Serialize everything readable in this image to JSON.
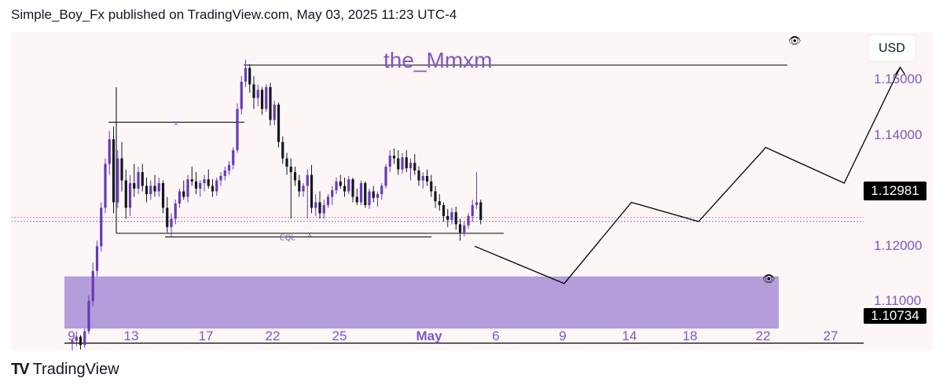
{
  "header": {
    "text": "Simple_Boy_Fx published on TradingView.com, May 03, 2025 11:23 UTC-4"
  },
  "footer": {
    "brand": "TradingView",
    "logo_icon": "tradingview-logo-icon"
  },
  "annotation": {
    "text": "the_Mmxm"
  },
  "currency": "USD",
  "price_axis": {
    "labels": [
      "1.15000",
      "1.14000",
      "1.12000",
      "1.11000"
    ],
    "current_price": "1.12981",
    "level_price": "1.10734"
  },
  "date_axis": {
    "labels": [
      "9",
      "13",
      "17",
      "22",
      "25",
      "May",
      "6",
      "9",
      "14",
      "18",
      "22",
      "27"
    ]
  },
  "drawings": {
    "eql_label": "EQL",
    "x_label_top": "x",
    "x_label_bottom": "x",
    "demand_zone_color": "#b39ddb",
    "projection_color": "#000000"
  },
  "colors": {
    "bull": "#673ab7",
    "bear": "#131722",
    "accent": "#7e57c2"
  },
  "chart_data": {
    "type": "candlestick",
    "symbol": "",
    "ylim": [
      1.106,
      1.164
    ],
    "y_ticks": [
      1.15,
      1.14,
      1.12,
      1.11
    ],
    "current_price": 1.12981,
    "horizontal_level": 1.10734,
    "top_level": 1.158,
    "eql_level": 1.1267,
    "sweep_level": 1.1252,
    "upper_x_level": 1.1476,
    "demand_zone": [
      1.11,
      1.1195
    ],
    "projection_path": [
      {
        "day": 64.0,
        "price": 1.125
      },
      {
        "day": 68.0,
        "price": 1.1182
      },
      {
        "day": 71.0,
        "price": 1.133
      },
      {
        "day": 74.0,
        "price": 1.1295
      },
      {
        "day": 77.0,
        "price": 1.143
      },
      {
        "day": 80.5,
        "price": 1.1365
      },
      {
        "day": 83.0,
        "price": 1.1576
      }
    ],
    "ohlc": [
      [
        1.1075,
        1.1082,
        1.1058,
        1.1078
      ],
      [
        1.1078,
        1.1095,
        1.1068,
        1.1085
      ],
      [
        1.1085,
        1.1088,
        1.1062,
        1.107
      ],
      [
        1.107,
        1.11,
        1.1065,
        1.1095
      ],
      [
        1.1095,
        1.116,
        1.109,
        1.115
      ],
      [
        1.115,
        1.122,
        1.114,
        1.1205
      ],
      [
        1.1205,
        1.126,
        1.1195,
        1.125
      ],
      [
        1.125,
        1.133,
        1.124,
        1.132
      ],
      [
        1.132,
        1.141,
        1.131,
        1.14
      ],
      [
        1.14,
        1.146,
        1.138,
        1.1445
      ],
      [
        1.1445,
        1.1468,
        1.131,
        1.133
      ],
      [
        1.133,
        1.1425,
        1.132,
        1.141
      ],
      [
        1.141,
        1.144,
        1.135,
        1.137
      ],
      [
        1.137,
        1.139,
        1.13,
        1.132
      ],
      [
        1.132,
        1.138,
        1.1305,
        1.1365
      ],
      [
        1.1365,
        1.14,
        1.134,
        1.1355
      ],
      [
        1.1355,
        1.1395,
        1.1345,
        1.1385
      ],
      [
        1.1385,
        1.14,
        1.135,
        1.136
      ],
      [
        1.136,
        1.1375,
        1.133,
        1.1345
      ],
      [
        1.1345,
        1.137,
        1.1335,
        1.136
      ],
      [
        1.136,
        1.138,
        1.134,
        1.135
      ],
      [
        1.135,
        1.1375,
        1.134,
        1.1365
      ],
      [
        1.1365,
        1.137,
        1.131,
        1.132
      ],
      [
        1.132,
        1.134,
        1.1275,
        1.1285
      ],
      [
        1.1285,
        1.131,
        1.1268,
        1.13
      ],
      [
        1.13,
        1.1335,
        1.129,
        1.1328
      ],
      [
        1.1328,
        1.1355,
        1.132,
        1.135
      ],
      [
        1.135,
        1.137,
        1.1335,
        1.134
      ],
      [
        1.134,
        1.138,
        1.133,
        1.1372
      ],
      [
        1.1372,
        1.1395,
        1.136,
        1.1368
      ],
      [
        1.1368,
        1.1385,
        1.1345,
        1.1355
      ],
      [
        1.1355,
        1.137,
        1.134,
        1.1365
      ],
      [
        1.1365,
        1.138,
        1.135,
        1.1372
      ],
      [
        1.1372,
        1.139,
        1.1355,
        1.136
      ],
      [
        1.136,
        1.1372,
        1.134,
        1.135
      ],
      [
        1.135,
        1.1375,
        1.1342,
        1.137
      ],
      [
        1.137,
        1.1385,
        1.136,
        1.1378
      ],
      [
        1.1378,
        1.1395,
        1.137,
        1.1388
      ],
      [
        1.1388,
        1.1405,
        1.138,
        1.1398
      ],
      [
        1.1398,
        1.143,
        1.139,
        1.1425
      ],
      [
        1.1425,
        1.151,
        1.142,
        1.15
      ],
      [
        1.15,
        1.156,
        1.149,
        1.155
      ],
      [
        1.155,
        1.159,
        1.154,
        1.1575
      ],
      [
        1.1575,
        1.1582,
        1.153,
        1.1545
      ],
      [
        1.1545,
        1.156,
        1.15,
        1.152
      ],
      [
        1.152,
        1.1545,
        1.1505,
        1.1535
      ],
      [
        1.1535,
        1.154,
        1.149,
        1.15
      ],
      [
        1.15,
        1.1545,
        1.1495,
        1.154
      ],
      [
        1.154,
        1.1548,
        1.147,
        1.148
      ],
      [
        1.148,
        1.1515,
        1.147,
        1.1508
      ],
      [
        1.1508,
        1.1512,
        1.143,
        1.144
      ],
      [
        1.144,
        1.145,
        1.14,
        1.141
      ],
      [
        1.141,
        1.142,
        1.138,
        1.1395
      ],
      [
        1.1395,
        1.141,
        1.13,
        1.1385
      ],
      [
        1.1385,
        1.1395,
        1.136,
        1.137
      ],
      [
        1.137,
        1.138,
        1.134,
        1.135
      ],
      [
        1.135,
        1.1365,
        1.134,
        1.136
      ],
      [
        1.136,
        1.139,
        1.13,
        1.138
      ],
      [
        1.138,
        1.1398,
        1.131,
        1.132
      ],
      [
        1.132,
        1.1345,
        1.1305,
        1.133
      ],
      [
        1.133,
        1.135,
        1.13,
        1.131
      ],
      [
        1.131,
        1.1335,
        1.13,
        1.1325
      ],
      [
        1.1325,
        1.1345,
        1.132,
        1.134
      ],
      [
        1.134,
        1.136,
        1.1325,
        1.1352
      ],
      [
        1.1352,
        1.1375,
        1.1345,
        1.1368
      ],
      [
        1.1368,
        1.138,
        1.1355,
        1.136
      ],
      [
        1.136,
        1.1375,
        1.134,
        1.135
      ],
      [
        1.135,
        1.1378,
        1.1345,
        1.1372
      ],
      [
        1.1372,
        1.1375,
        1.133,
        1.134
      ],
      [
        1.134,
        1.1355,
        1.1325,
        1.133
      ],
      [
        1.133,
        1.137,
        1.1325,
        1.1365
      ],
      [
        1.1365,
        1.1368,
        1.132,
        1.1325
      ],
      [
        1.1325,
        1.1355,
        1.1318,
        1.135
      ],
      [
        1.135,
        1.136,
        1.133,
        1.1338
      ],
      [
        1.1338,
        1.135,
        1.1322,
        1.1345
      ],
      [
        1.1345,
        1.1365,
        1.1335,
        1.136
      ],
      [
        1.136,
        1.14,
        1.1355,
        1.1395
      ],
      [
        1.1395,
        1.1425,
        1.1385,
        1.1415
      ],
      [
        1.1415,
        1.1428,
        1.14,
        1.141
      ],
      [
        1.141,
        1.1425,
        1.138,
        1.139
      ],
      [
        1.139,
        1.142,
        1.1382,
        1.1412
      ],
      [
        1.1412,
        1.1425,
        1.1385,
        1.1392
      ],
      [
        1.1392,
        1.141,
        1.137,
        1.1402
      ],
      [
        1.1402,
        1.1418,
        1.138,
        1.1388
      ],
      [
        1.1388,
        1.1395,
        1.136,
        1.137
      ],
      [
        1.137,
        1.1385,
        1.1355,
        1.1378
      ],
      [
        1.1378,
        1.139,
        1.136,
        1.1368
      ],
      [
        1.1368,
        1.138,
        1.134,
        1.135
      ],
      [
        1.135,
        1.136,
        1.132,
        1.1332
      ],
      [
        1.1332,
        1.1345,
        1.1315,
        1.1325
      ],
      [
        1.1325,
        1.133,
        1.1295,
        1.1305
      ],
      [
        1.1305,
        1.1318,
        1.1285,
        1.1298
      ],
      [
        1.1298,
        1.132,
        1.129,
        1.1312
      ],
      [
        1.1312,
        1.1322,
        1.128,
        1.129
      ],
      [
        1.129,
        1.13,
        1.126,
        1.1275
      ],
      [
        1.1275,
        1.1295,
        1.1268,
        1.1288
      ],
      [
        1.1288,
        1.131,
        1.1282,
        1.1305
      ],
      [
        1.1305,
        1.1335,
        1.1295,
        1.1325
      ],
      [
        1.1325,
        1.1385,
        1.1318,
        1.133
      ],
      [
        1.133,
        1.1335,
        1.129,
        1.1298
      ]
    ]
  }
}
